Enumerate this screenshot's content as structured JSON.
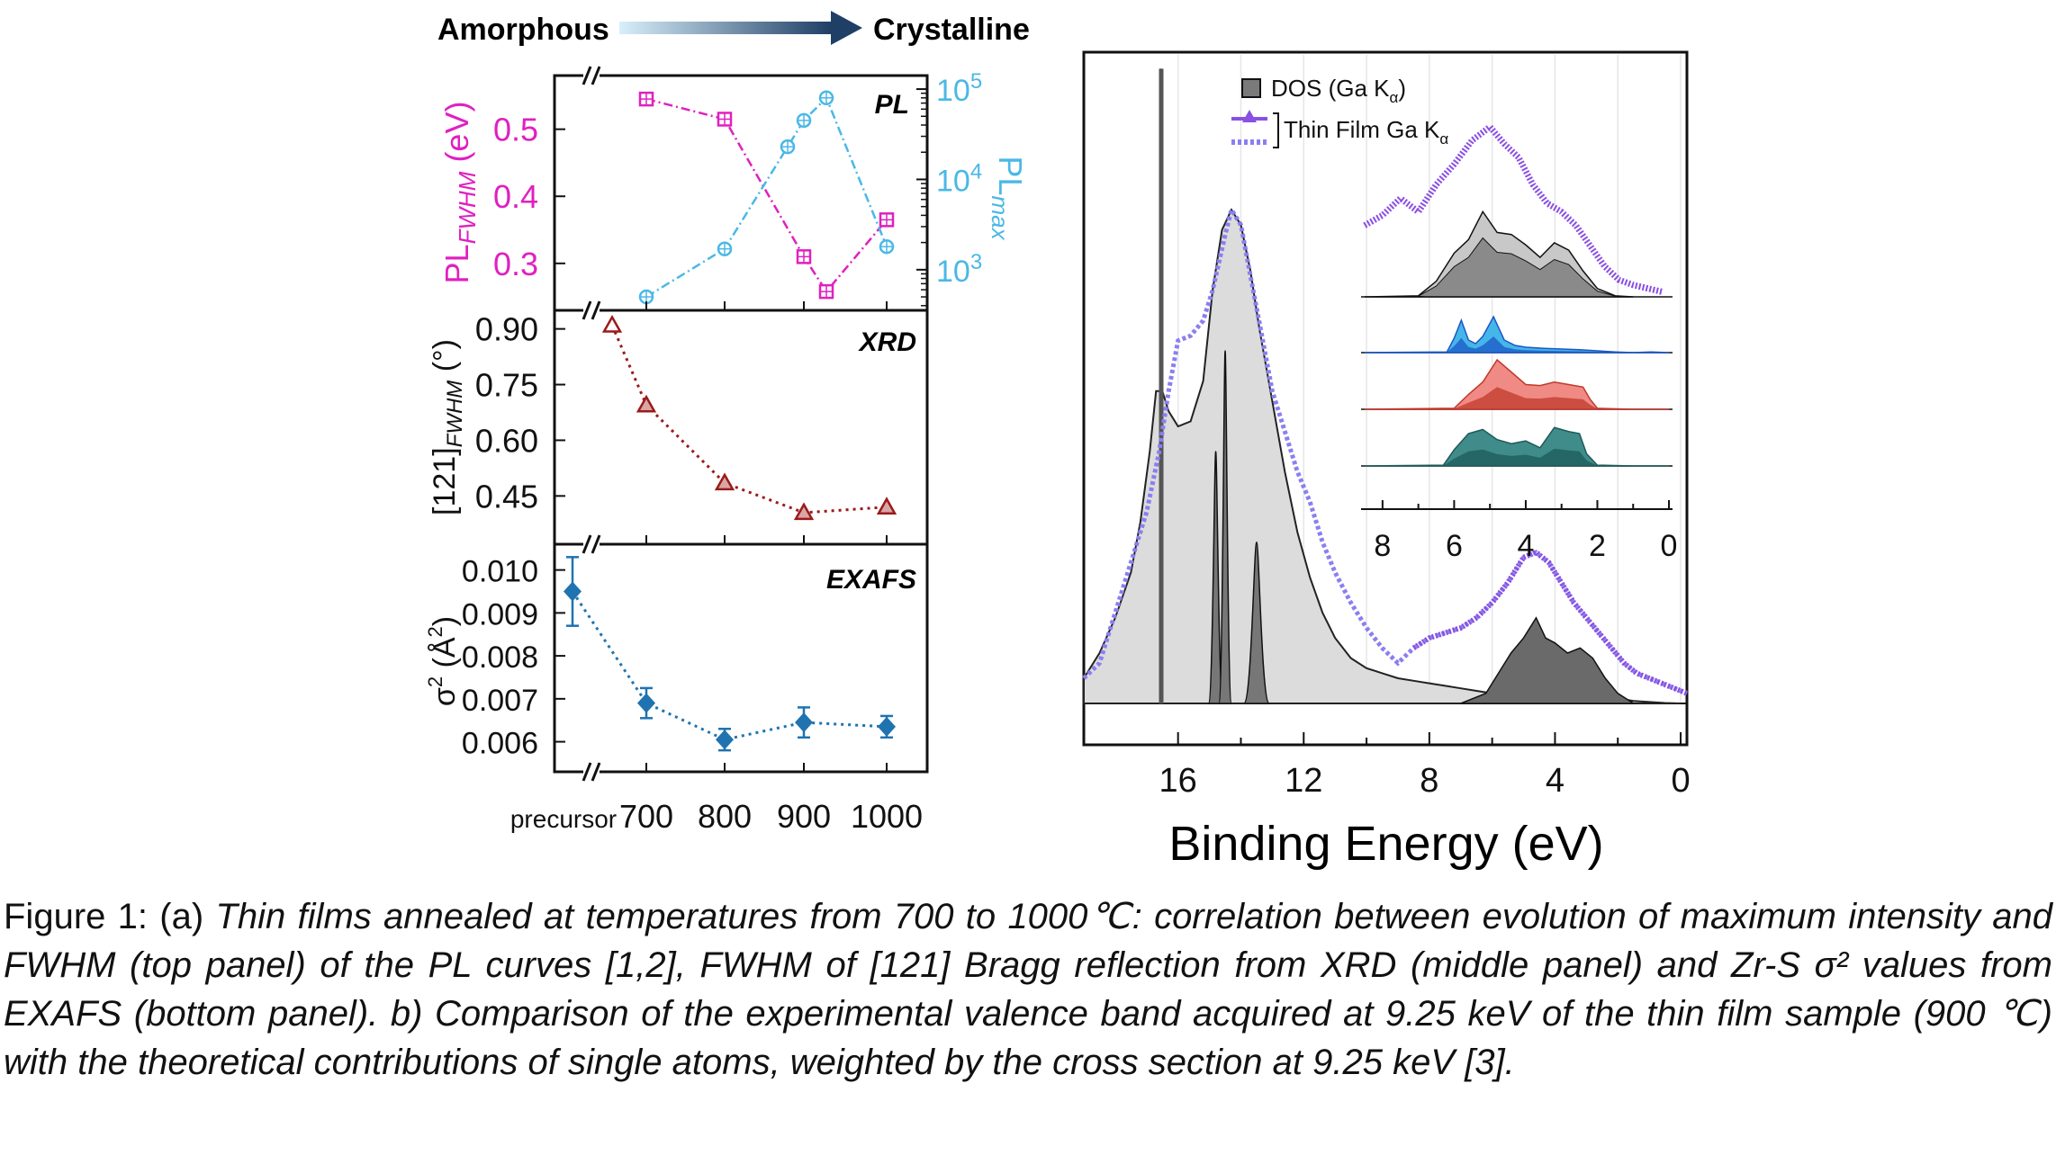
{
  "header": {
    "left_label": "Amorphous",
    "right_label": "Crystalline",
    "left_color": "#8fd0f3",
    "right_color": "#1f3f66"
  },
  "chart_data": [
    {
      "id": "pl",
      "type": "line",
      "panel_label": "PL",
      "ylabel_left": "PL_FWHM (eV)",
      "ylabel_right": "PL_max",
      "y_ticks_left": [
        "0.5",
        "0.4",
        "0.3"
      ],
      "y_ticks_right": [
        "10^5",
        "10^4",
        "10^3"
      ],
      "ylim_left": [
        0.23,
        0.58
      ],
      "ylim_right_log10": [
        2.55,
        5.15
      ],
      "series": [
        {
          "axis": "left",
          "color": "#e020c0",
          "marker": "square",
          "x": [
            700,
            800,
            900,
            925,
            1000
          ],
          "y": [
            0.545,
            0.515,
            0.31,
            0.258,
            0.365
          ]
        },
        {
          "axis": "right",
          "color": "#4ab8e6",
          "marker": "circle",
          "x": [
            700,
            800,
            880,
            900,
            925,
            1000
          ],
          "y": [
            500,
            1700,
            23000,
            45000,
            80000,
            1800
          ]
        }
      ]
    },
    {
      "id": "xrd",
      "type": "line",
      "panel_label": "XRD",
      "ylabel": "[121]_FWHM (°)",
      "y_ticks": [
        "0.90",
        "0.75",
        "0.60",
        "0.45"
      ],
      "ylim": [
        0.32,
        0.95
      ],
      "series": [
        {
          "color": "#9b1a1a",
          "marker": "triangle",
          "x": [
            "precursor",
            700,
            800,
            900,
            1000
          ],
          "y": [
            0.91,
            0.695,
            0.485,
            0.405,
            0.42
          ]
        }
      ]
    },
    {
      "id": "exafs",
      "type": "scatter",
      "panel_label": "EXAFS",
      "ylabel": "σ² (Å²)",
      "y_ticks": [
        "0.010",
        "0.009",
        "0.008",
        "0.007",
        "0.006"
      ],
      "ylim": [
        0.0053,
        0.0106
      ],
      "series": [
        {
          "color": "#1f73b0",
          "marker": "diamond",
          "x": [
            "precursor",
            700,
            800,
            900,
            1000
          ],
          "y": [
            0.0095,
            0.0069,
            0.00605,
            0.00645,
            0.00635
          ],
          "error": [
            0.0008,
            0.00035,
            0.00025,
            0.00035,
            0.00025
          ]
        }
      ]
    },
    {
      "id": "valence",
      "type": "area",
      "xlabel": "Binding Energy (eV)",
      "x_ticks": [
        "16",
        "12",
        "8",
        "4",
        "0"
      ],
      "xlim": [
        19,
        -0.2
      ],
      "legend": {
        "dos": "DOS (Ga K",
        "dos_sub": "α",
        "dos_tail": ")",
        "film": "Thin Film Ga K",
        "film_sub": "α"
      },
      "series": [
        {
          "name": "Thin Film Ga Kα",
          "color": "#8a4fe3",
          "x": [
            19,
            18.5,
            18,
            17.5,
            17.0,
            16.6,
            16.3,
            16.0,
            15.6,
            15.2,
            14.9,
            14.5,
            14.3,
            14.0,
            13.7,
            13.3,
            13.0,
            12.6,
            12.2,
            11.8,
            11.4,
            11.0,
            10.5,
            10.0,
            9.5,
            9.0,
            8.5,
            8.0,
            7.5,
            7.0,
            6.5,
            6.0,
            5.5,
            5.0,
            4.6,
            4.2,
            3.8,
            3.4,
            3.0,
            2.6,
            2.2,
            1.8,
            1.4,
            1.0,
            0.6,
            0.2,
            -0.2
          ],
          "y": [
            0.05,
            0.08,
            0.18,
            0.28,
            0.38,
            0.5,
            0.62,
            0.72,
            0.73,
            0.76,
            0.82,
            0.93,
            0.98,
            0.95,
            0.85,
            0.72,
            0.62,
            0.54,
            0.46,
            0.4,
            0.32,
            0.26,
            0.2,
            0.15,
            0.11,
            0.08,
            0.11,
            0.13,
            0.14,
            0.15,
            0.17,
            0.2,
            0.24,
            0.29,
            0.3,
            0.28,
            0.24,
            0.2,
            0.17,
            0.14,
            0.11,
            0.08,
            0.06,
            0.05,
            0.04,
            0.03,
            0.02
          ]
        },
        {
          "name": "DOS (Ga Kα)",
          "color": "#555555",
          "x": [
            19,
            18.5,
            18,
            17.5,
            17.2,
            16.9,
            16.7,
            16.5,
            16.3,
            16.0,
            15.6,
            15.2,
            14.9,
            14.6,
            14.3,
            14.0,
            13.7,
            13.4,
            13.0,
            12.6,
            12.2,
            11.8,
            11.4,
            11.0,
            10.5,
            10.0,
            9.5,
            9.0,
            8.5,
            8.0,
            7.5,
            7.0,
            6.5,
            6.0,
            5.5,
            5.0,
            4.5,
            4.0,
            3.5,
            3.0,
            2.5,
            2.0,
            1.5,
            1.0,
            0.5,
            0.0
          ],
          "y": [
            0.05,
            0.1,
            0.17,
            0.26,
            0.36,
            0.5,
            0.62,
            0.62,
            0.58,
            0.55,
            0.56,
            0.64,
            0.82,
            0.94,
            0.98,
            0.95,
            0.86,
            0.74,
            0.6,
            0.46,
            0.34,
            0.25,
            0.18,
            0.13,
            0.09,
            0.07,
            0.06,
            0.05,
            0.045,
            0.04,
            0.035,
            0.03,
            0.025,
            0.02,
            0.03,
            0.05,
            0.07,
            0.06,
            0.04,
            0.03,
            0.02,
            0.01,
            0.005,
            0.003,
            0.001,
            0
          ]
        }
      ],
      "inset": {
        "x_ticks": [
          "8",
          "6",
          "4",
          "2",
          "0"
        ],
        "xlim": [
          8.6,
          -0.1
        ],
        "traces": [
          {
            "name": "Thin Film Ga Kα",
            "color": "#8a4fe3",
            "x": [
              8.5,
              8.0,
              7.5,
              7.0,
              6.5,
              6.0,
              5.5,
              5.0,
              4.6,
              4.2,
              3.8,
              3.4,
              3.0,
              2.6,
              2.2,
              1.8,
              1.4,
              1.0,
              0.6,
              0.2
            ],
            "y": [
              0.42,
              0.48,
              0.58,
              0.5,
              0.66,
              0.78,
              0.92,
              1.0,
              0.9,
              0.82,
              0.66,
              0.55,
              0.5,
              0.42,
              0.3,
              0.18,
              0.1,
              0.07,
              0.05,
              0.03
            ]
          },
          {
            "name": "DOS (Ga Kα)",
            "color": "#555555",
            "x": [
              8.5,
              7.0,
              6.5,
              6.0,
              5.6,
              5.2,
              4.8,
              4.4,
              4.0,
              3.6,
              3.2,
              2.8,
              2.4,
              2.0,
              1.5,
              1.0
            ],
            "y": [
              0.0,
              0.01,
              0.15,
              0.42,
              0.55,
              0.82,
              0.62,
              0.6,
              0.5,
              0.38,
              0.52,
              0.45,
              0.25,
              0.08,
              0.01,
              0.0
            ],
            "fill": "#c8c8c8"
          },
          {
            "name": "blue",
            "color": "#1a57c7",
            "x": [
              8.5,
              6.2,
              6.0,
              5.8,
              5.6,
              5.4,
              5.2,
              4.9,
              4.6,
              4.3,
              4.0,
              3.5,
              3.0,
              2.5,
              2.0,
              1.5,
              1.0,
              0.5,
              0.0
            ],
            "y": [
              0.0,
              0.02,
              0.4,
              0.9,
              0.35,
              0.25,
              0.45,
              1.0,
              0.35,
              0.2,
              0.15,
              0.12,
              0.1,
              0.08,
              0.05,
              0.02,
              0.0,
              0.02,
              0.0
            ],
            "fill": "#45b6e8"
          },
          {
            "name": "red",
            "color": "#c0392b",
            "x": [
              8.5,
              6.0,
              5.6,
              5.2,
              4.8,
              4.4,
              4.0,
              3.6,
              3.2,
              2.8,
              2.4,
              2.2,
              2.0,
              1.0,
              0.0
            ],
            "y": [
              0.0,
              0.02,
              0.3,
              0.55,
              1.0,
              0.75,
              0.5,
              0.48,
              0.55,
              0.5,
              0.45,
              0.2,
              0.02,
              0.0,
              0.0
            ],
            "fill": "#f08a84"
          },
          {
            "name": "teal",
            "color": "#1e5a5a",
            "x": [
              8.5,
              6.3,
              6.0,
              5.6,
              5.2,
              4.8,
              4.4,
              4.0,
              3.6,
              3.2,
              2.8,
              2.5,
              2.3,
              2.0,
              1.0,
              0.0
            ],
            "y": [
              0.0,
              0.02,
              0.4,
              0.8,
              0.9,
              0.65,
              0.55,
              0.62,
              0.45,
              0.95,
              0.85,
              0.8,
              0.3,
              0.02,
              0.0,
              0.0
            ],
            "fill": "#3f8c8a"
          }
        ]
      }
    }
  ],
  "caption": {
    "lead": "Figure 1: (a) ",
    "body": "Thin films annealed at temperatures from 700 to 1000℃: correlation between evolution of maximum intensity and FWHM (top panel) of the PL curves [1,2], FWHM of [121] Bragg reflection from XRD (middle panel) and Zr-S σ² values from EXAFS (bottom panel). b) Comparison of the experimental valence band acquired at 9.25 keV of the thin film sample (900 ℃) with the theoretical contributions of single atoms, weighted by the cross section at 9.25 keV [3]."
  },
  "x_axis_left": {
    "ticks": [
      "precursor",
      "700",
      "800",
      "900",
      "1000"
    ]
  }
}
